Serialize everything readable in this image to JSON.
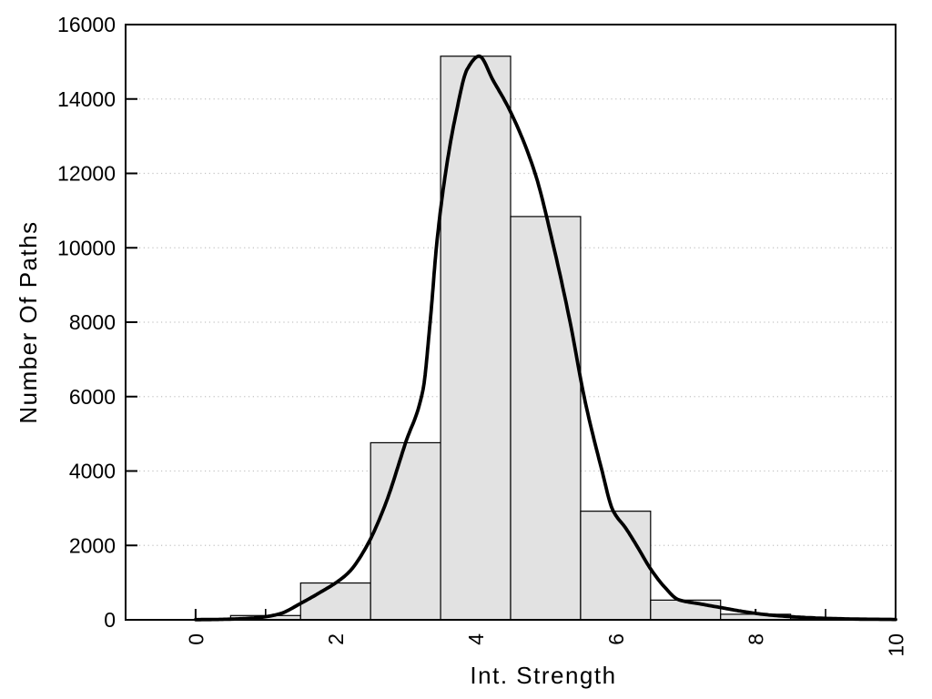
{
  "chart_data": {
    "type": "bar",
    "variant": "histogram-with-fit-curve",
    "title": "",
    "xlabel": "Int. Strength",
    "ylabel": "Number Of Paths",
    "xlim": [
      -1,
      10
    ],
    "ylim": [
      0,
      16000
    ],
    "x_major_ticks": [
      0,
      2,
      4,
      6,
      8,
      10
    ],
    "x_minor_ticks": [
      1,
      3,
      5,
      7,
      9
    ],
    "y_major_ticks": [
      0,
      2000,
      4000,
      6000,
      8000,
      10000,
      12000,
      14000,
      16000
    ],
    "grid": {
      "horizontal_dotted": true,
      "vertical": false,
      "color": "#c3c3c3"
    },
    "legend": null,
    "colors": {
      "background": "#ffffff",
      "bar_fill": "#e2e2e2",
      "bar_stroke": "#000000",
      "curve": "#000000",
      "axis": "#000000"
    },
    "histogram": {
      "bin_width": 1,
      "bin_centers": [
        1,
        2,
        3,
        4,
        5,
        6,
        7,
        8,
        9
      ],
      "counts": [
        115,
        990,
        4760,
        15150,
        10840,
        2920,
        530,
        150,
        15
      ]
    },
    "fit_curve": {
      "name": "distribution-fit",
      "points": [
        [
          0,
          5
        ],
        [
          0.3,
          10
        ],
        [
          0.6,
          25
        ],
        [
          0.9,
          60
        ],
        [
          1.2,
          160
        ],
        [
          1.5,
          440
        ],
        [
          1.8,
          760
        ],
        [
          2.0,
          990
        ],
        [
          2.2,
          1300
        ],
        [
          2.45,
          2000
        ],
        [
          2.7,
          3050
        ],
        [
          3.0,
          4760
        ],
        [
          3.25,
          6200
        ],
        [
          3.35,
          8000
        ],
        [
          3.45,
          10200
        ],
        [
          3.57,
          12000
        ],
        [
          3.72,
          13600
        ],
        [
          3.88,
          14800
        ],
        [
          4.05,
          15150
        ],
        [
          4.25,
          14500
        ],
        [
          4.5,
          13650
        ],
        [
          4.85,
          12000
        ],
        [
          5.1,
          10150
        ],
        [
          5.35,
          8000
        ],
        [
          5.55,
          6000
        ],
        [
          5.8,
          4050
        ],
        [
          5.96,
          2950
        ],
        [
          6.15,
          2450
        ],
        [
          6.3,
          2000
        ],
        [
          6.5,
          1370
        ],
        [
          6.7,
          880
        ],
        [
          6.9,
          540
        ],
        [
          7.2,
          430
        ],
        [
          7.5,
          330
        ],
        [
          7.8,
          230
        ],
        [
          8.1,
          150
        ],
        [
          8.5,
          85
        ],
        [
          9.0,
          40
        ],
        [
          9.5,
          18
        ],
        [
          10.0,
          10
        ]
      ]
    }
  }
}
